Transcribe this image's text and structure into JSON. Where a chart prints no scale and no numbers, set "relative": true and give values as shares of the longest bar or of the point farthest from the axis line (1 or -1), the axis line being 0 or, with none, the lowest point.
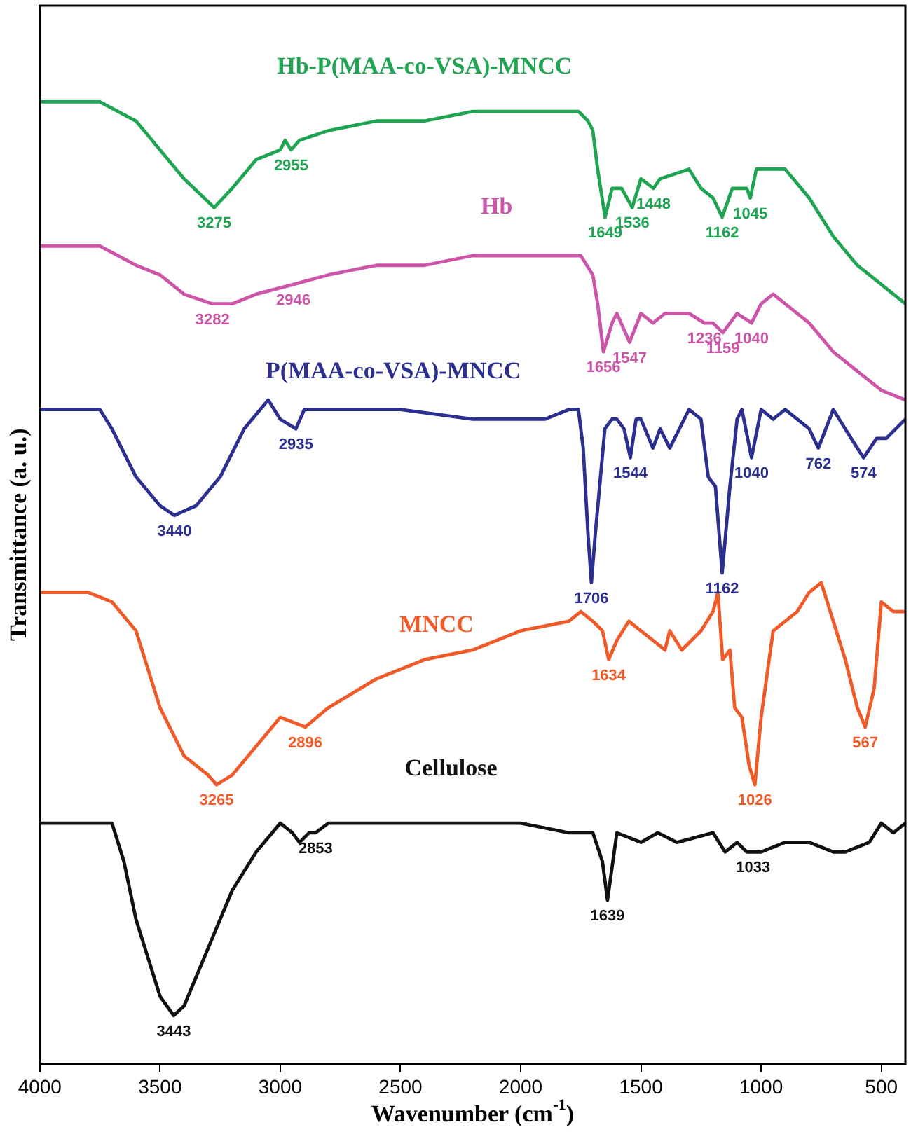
{
  "chart_data": {
    "type": "line",
    "relative": true,
    "xlabel": "Wavenumber (cm$^{-1}$)",
    "ylabel": "Transmittance (a. u.)",
    "xlim": [
      4000,
      400
    ],
    "xticks": [
      4000,
      3500,
      3000,
      2500,
      2000,
      1500,
      1000,
      500
    ],
    "series": [
      {
        "name": "Hb-P(MAA-co-VSA)-MNCC",
        "color": "#1fa552",
        "x": [
          4000,
          3750,
          3600,
          3500,
          3400,
          3275,
          3200,
          3100,
          3000,
          2980,
          2955,
          2920,
          2800,
          2600,
          2400,
          2200,
          2000,
          1800,
          1760,
          1720,
          1700,
          1680,
          1649,
          1620,
          1580,
          1536,
          1500,
          1448,
          1420,
          1300,
          1250,
          1200,
          1162,
          1120,
          1060,
          1045,
          1020,
          950,
          900,
          800,
          700,
          600,
          500,
          400
        ],
        "values": [
          1.0,
          1.0,
          0.98,
          0.95,
          0.92,
          0.89,
          0.91,
          0.94,
          0.95,
          0.96,
          0.95,
          0.96,
          0.97,
          0.98,
          0.98,
          0.99,
          0.99,
          0.99,
          0.99,
          0.98,
          0.97,
          0.93,
          0.88,
          0.91,
          0.91,
          0.89,
          0.92,
          0.91,
          0.92,
          0.93,
          0.91,
          0.9,
          0.88,
          0.91,
          0.91,
          0.9,
          0.93,
          0.93,
          0.93,
          0.9,
          0.86,
          0.83,
          0.81,
          0.79
        ]
      },
      {
        "name": "Hb",
        "color": "#cc55aa",
        "x": [
          4000,
          3750,
          3600,
          3500,
          3400,
          3282,
          3200,
          3100,
          2946,
          2800,
          2600,
          2400,
          2200,
          2000,
          1800,
          1750,
          1700,
          1680,
          1656,
          1620,
          1600,
          1547,
          1500,
          1450,
          1400,
          1300,
          1236,
          1200,
          1159,
          1100,
          1040,
          1000,
          950,
          900,
          800,
          700,
          600,
          500,
          400
        ],
        "values": [
          0.85,
          0.85,
          0.83,
          0.82,
          0.8,
          0.79,
          0.79,
          0.8,
          0.81,
          0.82,
          0.83,
          0.83,
          0.84,
          0.84,
          0.84,
          0.84,
          0.82,
          0.79,
          0.74,
          0.77,
          0.78,
          0.75,
          0.78,
          0.77,
          0.78,
          0.78,
          0.77,
          0.77,
          0.76,
          0.78,
          0.77,
          0.79,
          0.8,
          0.79,
          0.77,
          0.74,
          0.72,
          0.7,
          0.69
        ]
      },
      {
        "name": "P(MAA-co-VSA)-MNCC",
        "color": "#2b2f8f",
        "x": [
          4000,
          3900,
          3800,
          3750,
          3700,
          3600,
          3500,
          3440,
          3350,
          3250,
          3150,
          3050,
          3000,
          2935,
          2900,
          2700,
          2500,
          2200,
          2100,
          2000,
          1900,
          1800,
          1760,
          1740,
          1720,
          1706,
          1690,
          1650,
          1620,
          1600,
          1570,
          1544,
          1520,
          1500,
          1450,
          1420,
          1380,
          1300,
          1250,
          1220,
          1190,
          1162,
          1130,
          1100,
          1080,
          1040,
          1000,
          950,
          900,
          850,
          800,
          762,
          700,
          650,
          600,
          574,
          520,
          480,
          400
        ],
        "values": [
          0.68,
          0.68,
          0.68,
          0.68,
          0.66,
          0.61,
          0.58,
          0.57,
          0.58,
          0.61,
          0.66,
          0.69,
          0.67,
          0.66,
          0.68,
          0.68,
          0.68,
          0.67,
          0.67,
          0.67,
          0.67,
          0.68,
          0.68,
          0.64,
          0.55,
          0.5,
          0.55,
          0.66,
          0.67,
          0.67,
          0.66,
          0.63,
          0.67,
          0.67,
          0.64,
          0.66,
          0.64,
          0.68,
          0.67,
          0.61,
          0.6,
          0.51,
          0.6,
          0.67,
          0.68,
          0.63,
          0.68,
          0.67,
          0.68,
          0.67,
          0.66,
          0.64,
          0.68,
          0.66,
          0.64,
          0.63,
          0.65,
          0.65,
          0.67
        ]
      },
      {
        "name": "MNCC",
        "color": "#f05a28",
        "x": [
          4000,
          3900,
          3800,
          3700,
          3600,
          3500,
          3400,
          3300,
          3265,
          3200,
          3100,
          3000,
          2896,
          2800,
          2600,
          2400,
          2200,
          2000,
          1800,
          1750,
          1700,
          1660,
          1634,
          1600,
          1550,
          1500,
          1450,
          1400,
          1380,
          1330,
          1250,
          1200,
          1180,
          1160,
          1130,
          1110,
          1080,
          1050,
          1026,
          1000,
          950,
          900,
          850,
          800,
          750,
          700,
          650,
          600,
          567,
          530,
          500,
          450,
          400
        ],
        "values": [
          0.49,
          0.49,
          0.49,
          0.48,
          0.45,
          0.37,
          0.32,
          0.3,
          0.29,
          0.3,
          0.33,
          0.36,
          0.35,
          0.37,
          0.4,
          0.42,
          0.43,
          0.45,
          0.46,
          0.47,
          0.46,
          0.45,
          0.42,
          0.44,
          0.46,
          0.45,
          0.44,
          0.43,
          0.45,
          0.43,
          0.45,
          0.47,
          0.49,
          0.42,
          0.43,
          0.37,
          0.36,
          0.31,
          0.29,
          0.36,
          0.45,
          0.46,
          0.47,
          0.49,
          0.5,
          0.46,
          0.42,
          0.37,
          0.35,
          0.39,
          0.48,
          0.47,
          0.47
        ]
      },
      {
        "name": "Cellulose",
        "color": "#111111",
        "x": [
          4000,
          3800,
          3700,
          3650,
          3600,
          3500,
          3443,
          3400,
          3300,
          3200,
          3100,
          3000,
          2950,
          2920,
          2880,
          2853,
          2800,
          2500,
          2000,
          1800,
          1700,
          1660,
          1639,
          1600,
          1500,
          1430,
          1350,
          1200,
          1150,
          1100,
          1060,
          1033,
          1000,
          900,
          800,
          700,
          650,
          550,
          500,
          450,
          400
        ],
        "values": [
          0.25,
          0.25,
          0.25,
          0.21,
          0.15,
          0.07,
          0.05,
          0.06,
          0.12,
          0.18,
          0.22,
          0.25,
          0.24,
          0.23,
          0.24,
          0.24,
          0.25,
          0.25,
          0.25,
          0.24,
          0.24,
          0.21,
          0.17,
          0.24,
          0.23,
          0.24,
          0.23,
          0.24,
          0.22,
          0.23,
          0.22,
          0.22,
          0.22,
          0.23,
          0.23,
          0.22,
          0.22,
          0.23,
          0.25,
          0.24,
          0.25
        ]
      }
    ],
    "annotations": [
      {
        "text": "3275",
        "x": 3275,
        "y": 0.89
      },
      {
        "text": "2955",
        "x": 2955,
        "y": 0.95
      },
      {
        "text": "1649",
        "x": 1649,
        "y": 0.88
      },
      {
        "text": "1536",
        "x": 1536,
        "y": 0.89
      },
      {
        "text": "1448",
        "x": 1448,
        "y": 0.91
      },
      {
        "text": "1162",
        "x": 1162,
        "y": 0.88
      },
      {
        "text": "1045",
        "x": 1045,
        "y": 0.9
      },
      {
        "text": "3282",
        "x": 3282,
        "y": 0.79
      },
      {
        "text": "2946",
        "x": 2946,
        "y": 0.81
      },
      {
        "text": "1656",
        "x": 1656,
        "y": 0.74
      },
      {
        "text": "1547",
        "x": 1547,
        "y": 0.75
      },
      {
        "text": "1236",
        "x": 1236,
        "y": 0.77
      },
      {
        "text": "1159",
        "x": 1159,
        "y": 0.76
      },
      {
        "text": "1040",
        "x": 1040,
        "y": 0.77
      },
      {
        "text": "3440",
        "x": 3440,
        "y": 0.57
      },
      {
        "text": "2935",
        "x": 2935,
        "y": 0.66
      },
      {
        "text": "1706",
        "x": 1706,
        "y": 0.5
      },
      {
        "text": "1544",
        "x": 1544,
        "y": 0.63
      },
      {
        "text": "1162",
        "x": 1162,
        "y": 0.51
      },
      {
        "text": "1040",
        "x": 1040,
        "y": 0.63
      },
      {
        "text": "762",
        "x": 762,
        "y": 0.64
      },
      {
        "text": "574",
        "x": 574,
        "y": 0.63
      },
      {
        "text": "3265",
        "x": 3265,
        "y": 0.29
      },
      {
        "text": "2896",
        "x": 2896,
        "y": 0.35
      },
      {
        "text": "1634",
        "x": 1634,
        "y": 0.42
      },
      {
        "text": "1026",
        "x": 1026,
        "y": 0.29
      },
      {
        "text": "567",
        "x": 567,
        "y": 0.35
      },
      {
        "text": "3443",
        "x": 3443,
        "y": 0.05
      },
      {
        "text": "2853",
        "x": 2853,
        "y": 0.24
      },
      {
        "text": "1639",
        "x": 1639,
        "y": 0.17
      },
      {
        "text": "1033",
        "x": 1033,
        "y": 0.22
      }
    ]
  }
}
